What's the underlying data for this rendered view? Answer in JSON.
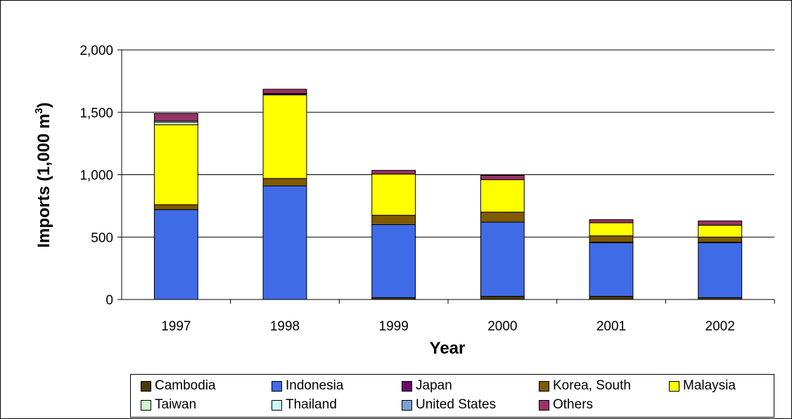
{
  "chart_data": {
    "type": "bar",
    "stacked": true,
    "categories": [
      "1997",
      "1998",
      "1999",
      "2000",
      "2001",
      "2002"
    ],
    "xlabel": "Year",
    "ylabel_main": "Imports (1,000 m",
    "ylabel_sup": "3",
    "ylabel_close": ")",
    "ylim": [
      0,
      2000
    ],
    "yticks": [
      0,
      500,
      1000,
      1500,
      2000
    ],
    "ytick_labels": [
      "0",
      "500",
      "1,000",
      "1,500",
      "2,000"
    ],
    "grid": true,
    "legend_position": "bottom",
    "series": [
      {
        "name": "Cambodia",
        "color": "#4a3a00",
        "values": [
          0,
          0,
          15,
          25,
          25,
          15
        ]
      },
      {
        "name": "Indonesia",
        "color": "#3f6ce6",
        "values": [
          720,
          910,
          585,
          595,
          430,
          440
        ]
      },
      {
        "name": "Japan",
        "color": "#6b0a6b",
        "values": [
          0,
          0,
          0,
          0,
          5,
          5
        ]
      },
      {
        "name": "Korea, South",
        "color": "#7f5a00",
        "values": [
          40,
          60,
          75,
          80,
          50,
          40
        ]
      },
      {
        "name": "Malaysia",
        "color": "#ffff00",
        "values": [
          640,
          670,
          330,
          260,
          105,
          95
        ]
      },
      {
        "name": "Taiwan",
        "color": "#cff5cf",
        "values": [
          20,
          5,
          0,
          0,
          0,
          0
        ]
      },
      {
        "name": "Thailand",
        "color": "#ccf7f7",
        "values": [
          10,
          5,
          0,
          0,
          0,
          0
        ]
      },
      {
        "name": "United States",
        "color": "#7f9fcf",
        "values": [
          0,
          0,
          0,
          0,
          0,
          0
        ]
      },
      {
        "name": "Others",
        "color": "#993366",
        "values": [
          60,
          35,
          30,
          35,
          25,
          35
        ]
      }
    ]
  }
}
